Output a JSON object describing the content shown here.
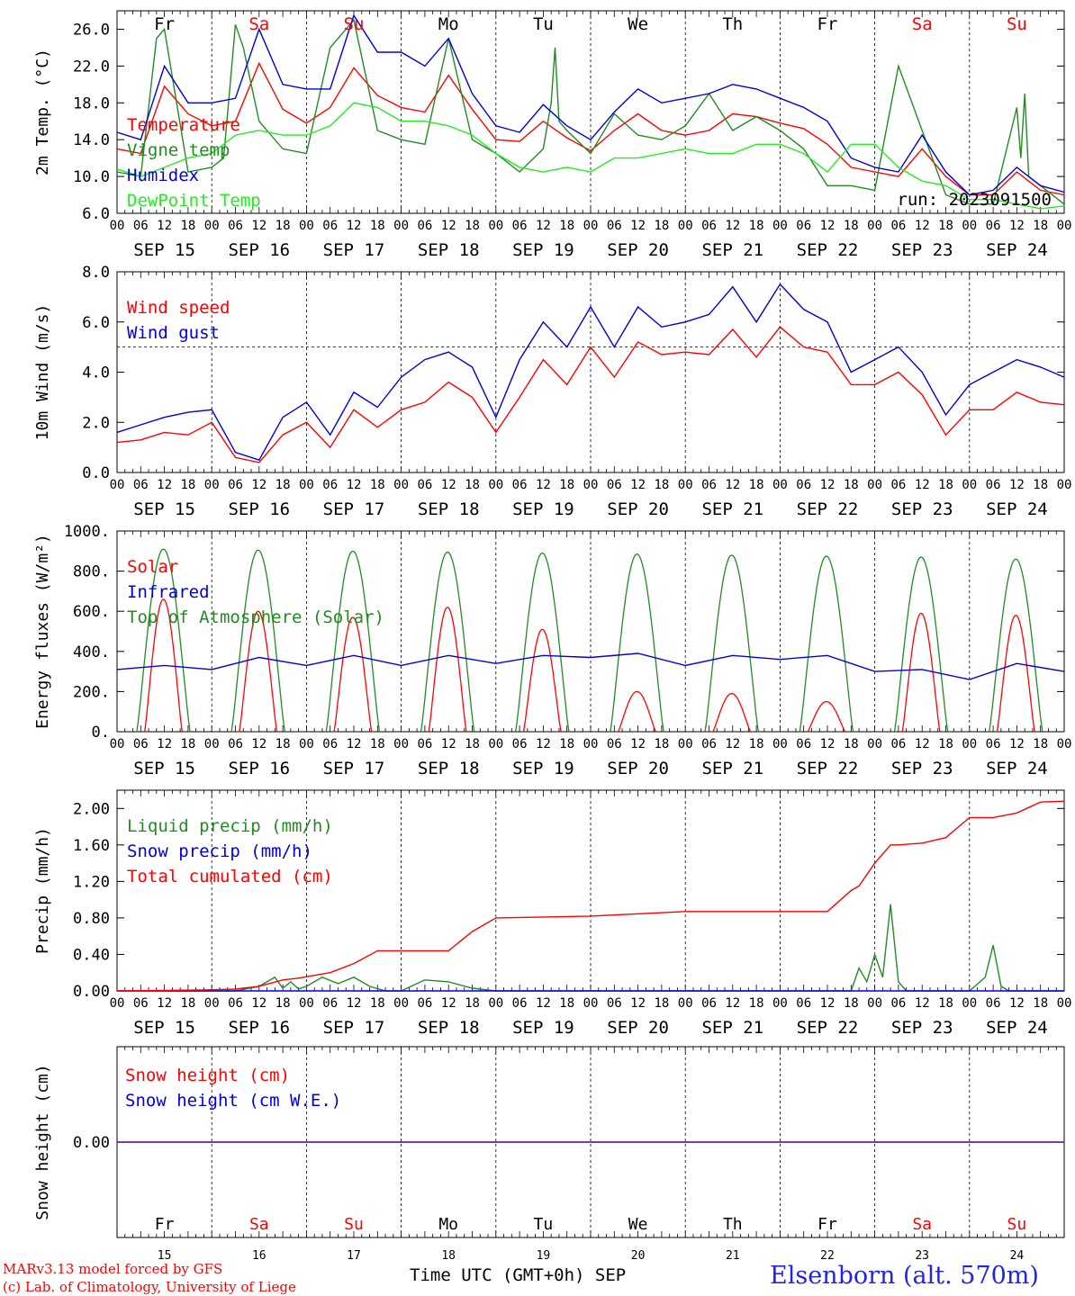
{
  "chart_data": [
    {
      "id": "temp",
      "type": "line",
      "ylabel": "2m Temp. (°C)",
      "ylim": [
        6.0,
        28.0
      ],
      "yticks": [
        "6.0",
        "10.0",
        "14.0",
        "18.0",
        "22.0",
        "26.0"
      ],
      "weekdays": [
        "Fr",
        "Sa",
        "Su",
        "Mo",
        "Tu",
        "We",
        "Th",
        "Fr",
        "Sa",
        "Su"
      ],
      "weekday_colors": [
        "#000000",
        "#ff0000",
        "#ff0000",
        "#000000",
        "#000000",
        "#000000",
        "#000000",
        "#000000",
        "#ff0000",
        "#ff0000"
      ],
      "run_label": "run: 2023091500",
      "series": [
        {
          "name": "Temperature",
          "color": "#ff0000",
          "x": [
            0,
            6,
            12,
            18,
            24,
            30,
            36,
            42,
            48,
            54,
            60,
            66,
            72,
            78,
            84,
            90,
            96,
            102,
            108,
            114,
            120,
            126,
            132,
            138,
            144,
            150,
            156,
            162,
            168,
            174,
            180,
            186,
            192,
            198,
            204,
            210,
            216,
            222,
            228,
            234,
            240
          ],
          "y": [
            13.0,
            12.5,
            19.8,
            16.8,
            15.5,
            16.0,
            22.3,
            17.3,
            15.8,
            17.5,
            21.8,
            18.8,
            17.5,
            17.0,
            21.0,
            17.3,
            14.0,
            13.8,
            16.0,
            14.2,
            12.8,
            15.0,
            16.8,
            15.0,
            14.5,
            15.0,
            16.8,
            16.5,
            15.8,
            15.2,
            13.5,
            11.0,
            10.5,
            10.0,
            13.0,
            10.0,
            8.0,
            8.0,
            10.5,
            8.5,
            8.0
          ]
        },
        {
          "name": "Vigne temp",
          "color": "#228b22",
          "x": [
            0,
            6,
            10,
            12,
            18,
            24,
            27,
            30,
            32,
            34,
            36,
            42,
            48,
            54,
            60,
            66,
            72,
            78,
            84,
            90,
            96,
            102,
            108,
            110,
            111,
            112,
            114,
            120,
            126,
            132,
            138,
            144,
            150,
            156,
            162,
            168,
            174,
            180,
            186,
            192,
            198,
            204,
            210,
            216,
            222,
            228,
            229,
            230,
            231,
            234,
            240
          ],
          "y": [
            10.5,
            10.0,
            25.0,
            26.0,
            10.5,
            11.0,
            12.0,
            26.5,
            24.0,
            20.0,
            16.0,
            13.0,
            12.5,
            24.0,
            27.0,
            15.0,
            14.0,
            13.5,
            25.0,
            14.0,
            12.5,
            10.5,
            13.0,
            18.0,
            24.0,
            16.0,
            15.0,
            12.5,
            16.8,
            14.5,
            14.0,
            15.5,
            19.0,
            15.0,
            16.5,
            15.0,
            13.0,
            9.0,
            9.0,
            8.5,
            22.0,
            15.0,
            8.0,
            7.0,
            7.0,
            17.5,
            12.0,
            19.0,
            10.0,
            9.0,
            7.0
          ]
        },
        {
          "name": "Humidex",
          "color": "#0000dd",
          "x": [
            0,
            6,
            12,
            18,
            24,
            30,
            36,
            42,
            48,
            54,
            60,
            66,
            72,
            78,
            84,
            90,
            96,
            102,
            108,
            114,
            120,
            126,
            132,
            138,
            144,
            150,
            156,
            162,
            168,
            174,
            180,
            186,
            192,
            198,
            204,
            210,
            216,
            222,
            228,
            234,
            240
          ],
          "y": [
            14.8,
            14.0,
            22.0,
            18.0,
            18.0,
            18.5,
            26.0,
            20.0,
            19.5,
            19.5,
            27.5,
            23.5,
            23.5,
            22.0,
            25.0,
            19.0,
            15.5,
            14.8,
            17.8,
            15.5,
            14.0,
            17.0,
            19.5,
            18.0,
            18.5,
            19.0,
            20.0,
            19.5,
            18.5,
            17.5,
            16.0,
            12.0,
            11.0,
            10.5,
            14.5,
            10.5,
            8.0,
            8.5,
            11.0,
            9.0,
            8.3
          ]
        },
        {
          "name": "DewPoint Temp",
          "color": "#22ee22",
          "x": [
            0,
            6,
            12,
            18,
            24,
            30,
            36,
            42,
            48,
            54,
            60,
            66,
            72,
            78,
            84,
            90,
            96,
            102,
            108,
            114,
            120,
            126,
            132,
            138,
            144,
            150,
            156,
            162,
            168,
            174,
            180,
            186,
            192,
            198,
            204,
            210,
            216,
            222,
            228,
            234,
            240
          ],
          "y": [
            10.8,
            10.0,
            11.0,
            12.0,
            12.5,
            14.5,
            15.0,
            14.5,
            14.5,
            15.5,
            18.0,
            17.5,
            16.0,
            16.0,
            15.5,
            14.5,
            12.5,
            11.0,
            10.5,
            11.0,
            10.5,
            12.0,
            12.0,
            12.5,
            13.0,
            12.5,
            12.5,
            13.5,
            13.5,
            12.5,
            10.5,
            13.5,
            13.5,
            11.0,
            9.5,
            9.0,
            7.5,
            7.5,
            7.0,
            6.5,
            6.8
          ]
        }
      ]
    },
    {
      "id": "wind",
      "type": "line",
      "ylabel": "10m Wind (m/s)",
      "ylim": [
        0.0,
        8.0
      ],
      "yticks": [
        "0.0",
        "2.0",
        "4.0",
        "6.0",
        "8.0"
      ],
      "reference_line": 5.0,
      "series": [
        {
          "name": "Wind speed",
          "color": "#ff0000",
          "x": [
            0,
            6,
            12,
            18,
            24,
            30,
            36,
            42,
            48,
            54,
            60,
            66,
            72,
            78,
            84,
            90,
            96,
            102,
            108,
            114,
            120,
            126,
            132,
            138,
            144,
            150,
            156,
            162,
            168,
            174,
            180,
            186,
            192,
            198,
            204,
            210,
            216,
            222,
            228,
            234,
            240
          ],
          "y": [
            1.2,
            1.3,
            1.6,
            1.5,
            2.0,
            0.6,
            0.4,
            1.5,
            2.0,
            1.0,
            2.5,
            1.8,
            2.5,
            2.8,
            3.6,
            3.0,
            1.6,
            3.0,
            4.5,
            3.5,
            5.0,
            3.8,
            5.2,
            4.7,
            4.8,
            4.7,
            5.7,
            4.6,
            5.8,
            5.0,
            4.8,
            3.5,
            3.5,
            4.0,
            3.1,
            1.5,
            2.5,
            2.5,
            3.2,
            2.8,
            2.7
          ]
        },
        {
          "name": "Wind gust",
          "color": "#0000dd",
          "x": [
            0,
            6,
            12,
            18,
            24,
            30,
            36,
            42,
            48,
            54,
            60,
            66,
            72,
            78,
            84,
            90,
            96,
            102,
            108,
            114,
            120,
            126,
            132,
            138,
            144,
            150,
            156,
            162,
            168,
            174,
            180,
            186,
            192,
            198,
            204,
            210,
            216,
            222,
            228,
            234,
            240
          ],
          "y": [
            1.6,
            1.9,
            2.2,
            2.4,
            2.5,
            0.8,
            0.5,
            2.2,
            2.8,
            1.5,
            3.2,
            2.6,
            3.8,
            4.5,
            4.8,
            4.2,
            2.2,
            4.5,
            6.0,
            5.0,
            6.6,
            5.0,
            6.6,
            5.8,
            6.0,
            6.3,
            7.4,
            6.0,
            7.5,
            6.5,
            6.0,
            4.0,
            4.5,
            5.0,
            4.0,
            2.3,
            3.5,
            4.0,
            4.5,
            4.2,
            3.8
          ]
        }
      ]
    },
    {
      "id": "energy",
      "type": "line",
      "ylabel": "Energy fluxes (W/m²)",
      "ylim": [
        0,
        1000
      ],
      "yticks": [
        "0.",
        "200.",
        "400.",
        "600.",
        "800.",
        "1000."
      ],
      "series": [
        {
          "name": "Solar",
          "color": "#ff0000",
          "daily_peaks": [
            660,
            600,
            570,
            620,
            510,
            200,
            190,
            150,
            590,
            580
          ]
        },
        {
          "name": "Infrared",
          "color": "#0000dd",
          "x": [
            0,
            12,
            24,
            36,
            48,
            60,
            72,
            84,
            96,
            108,
            120,
            132,
            144,
            156,
            168,
            180,
            192,
            204,
            216,
            228,
            240
          ],
          "y": [
            310,
            330,
            310,
            370,
            330,
            380,
            330,
            380,
            340,
            380,
            370,
            390,
            330,
            380,
            360,
            380,
            300,
            310,
            260,
            340,
            300
          ]
        },
        {
          "name": "Top of Atmosphere (Solar)",
          "color": "#228b22",
          "daily_peaks": [
            910,
            905,
            900,
            895,
            890,
            885,
            880,
            875,
            870,
            860
          ]
        }
      ]
    },
    {
      "id": "precip",
      "type": "line",
      "ylabel": "Precip (mm/h)",
      "ylim": [
        0.0,
        2.2
      ],
      "yticks": [
        "0.00",
        "0.40",
        "0.80",
        "1.20",
        "1.60",
        "2.00"
      ],
      "series": [
        {
          "name": "Liquid precip (mm/h)",
          "color": "#228b22",
          "x": [
            0,
            24,
            30,
            36,
            40,
            42,
            44,
            46,
            48,
            52,
            56,
            60,
            64,
            68,
            72,
            78,
            84,
            90,
            96,
            120,
            168,
            186,
            188,
            190,
            192,
            194,
            196,
            198,
            200,
            202,
            216,
            220,
            222,
            224,
            226,
            228,
            240
          ],
          "y": [
            0,
            0,
            0,
            0.05,
            0.15,
            0.03,
            0.1,
            0.02,
            0.05,
            0.15,
            0.08,
            0.15,
            0.05,
            0,
            0,
            0.12,
            0.1,
            0.03,
            0,
            0,
            0,
            0,
            0.25,
            0.1,
            0.4,
            0.15,
            0.95,
            0.1,
            0,
            0,
            0,
            0.15,
            0.5,
            0.05,
            0,
            0,
            0
          ]
        },
        {
          "name": "Snow precip (mm/h)",
          "color": "#0000dd",
          "x": [
            0,
            240
          ],
          "y": [
            0,
            0
          ]
        },
        {
          "name": "Total cumulated (cm)",
          "color": "#ff0000",
          "x": [
            0,
            22,
            30,
            36,
            42,
            46,
            54,
            60,
            66,
            72,
            84,
            90,
            96,
            108,
            120,
            144,
            168,
            180,
            186,
            188,
            192,
            196,
            198,
            204,
            210,
            216,
            222,
            228,
            234,
            240
          ],
          "y": [
            0,
            0.01,
            0.02,
            0.05,
            0.12,
            0.14,
            0.2,
            0.3,
            0.44,
            0.44,
            0.44,
            0.65,
            0.8,
            0.81,
            0.82,
            0.87,
            0.87,
            0.87,
            1.1,
            1.15,
            1.4,
            1.6,
            1.6,
            1.62,
            1.68,
            1.9,
            1.9,
            1.95,
            2.07,
            2.08
          ]
        }
      ]
    },
    {
      "id": "snow",
      "type": "line",
      "ylabel": "Snow height (cm)",
      "ylim": [
        -1,
        1
      ],
      "yticks": [
        "0.00"
      ],
      "series": [
        {
          "name": "Snow height (cm)",
          "color": "#ff0000",
          "x": [
            0,
            240
          ],
          "y": [
            0,
            0
          ]
        },
        {
          "name": "Snow height (cm W.E.)",
          "color": "#0000dd",
          "x": [
            0,
            240
          ],
          "y": [
            0,
            0
          ]
        }
      ]
    }
  ],
  "x_axis": {
    "hour_labels": [
      "00",
      "06",
      "12",
      "18"
    ],
    "final_label": "00",
    "dates": [
      "SEP 15",
      "SEP 16",
      "SEP 17",
      "SEP 18",
      "SEP 19",
      "SEP 20",
      "SEP 21",
      "SEP 22",
      "SEP 23",
      "SEP 24"
    ],
    "day_numbers": [
      "15",
      "16",
      "17",
      "18",
      "19",
      "20",
      "21",
      "22",
      "23",
      "24"
    ],
    "xlabel": "Time UTC (GMT+0h) SEP"
  },
  "footer": {
    "credit_line1": "MARv3.13 model forced by GFS",
    "credit_line2": "(c) Lab. of Climatology, University of Liege",
    "station": "Elsenborn (alt. 570m)"
  }
}
